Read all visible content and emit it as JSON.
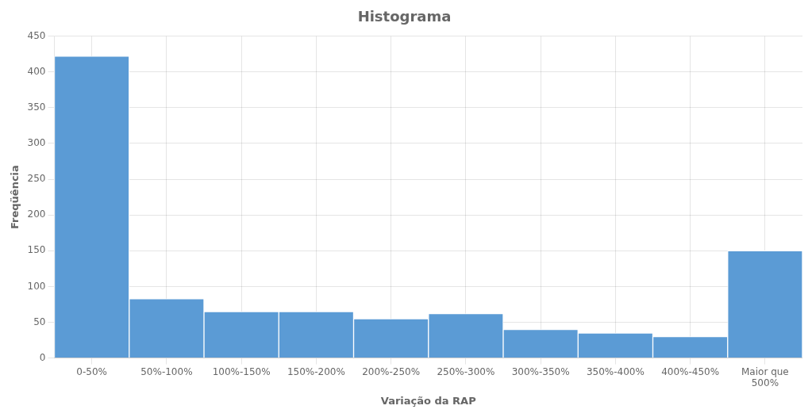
{
  "chart_data": {
    "type": "bar",
    "title": "Histograma",
    "xlabel": "Variação da RAP",
    "ylabel": "Freqüência",
    "categories": [
      "0-50%",
      "50%-100%",
      "100%-150%",
      "150%-200%",
      "200%-250%",
      "250%-300%",
      "300%-350%",
      "350%-400%",
      "400%-450%",
      "Maior que\n500%"
    ],
    "values": [
      422,
      83,
      65,
      65,
      55,
      62,
      40,
      35,
      30,
      150
    ],
    "color": "#5b9bd5",
    "ylim": [
      0,
      450
    ],
    "yticks": [
      0,
      50,
      100,
      150,
      200,
      250,
      300,
      350,
      400,
      450
    ],
    "grid": true
  }
}
